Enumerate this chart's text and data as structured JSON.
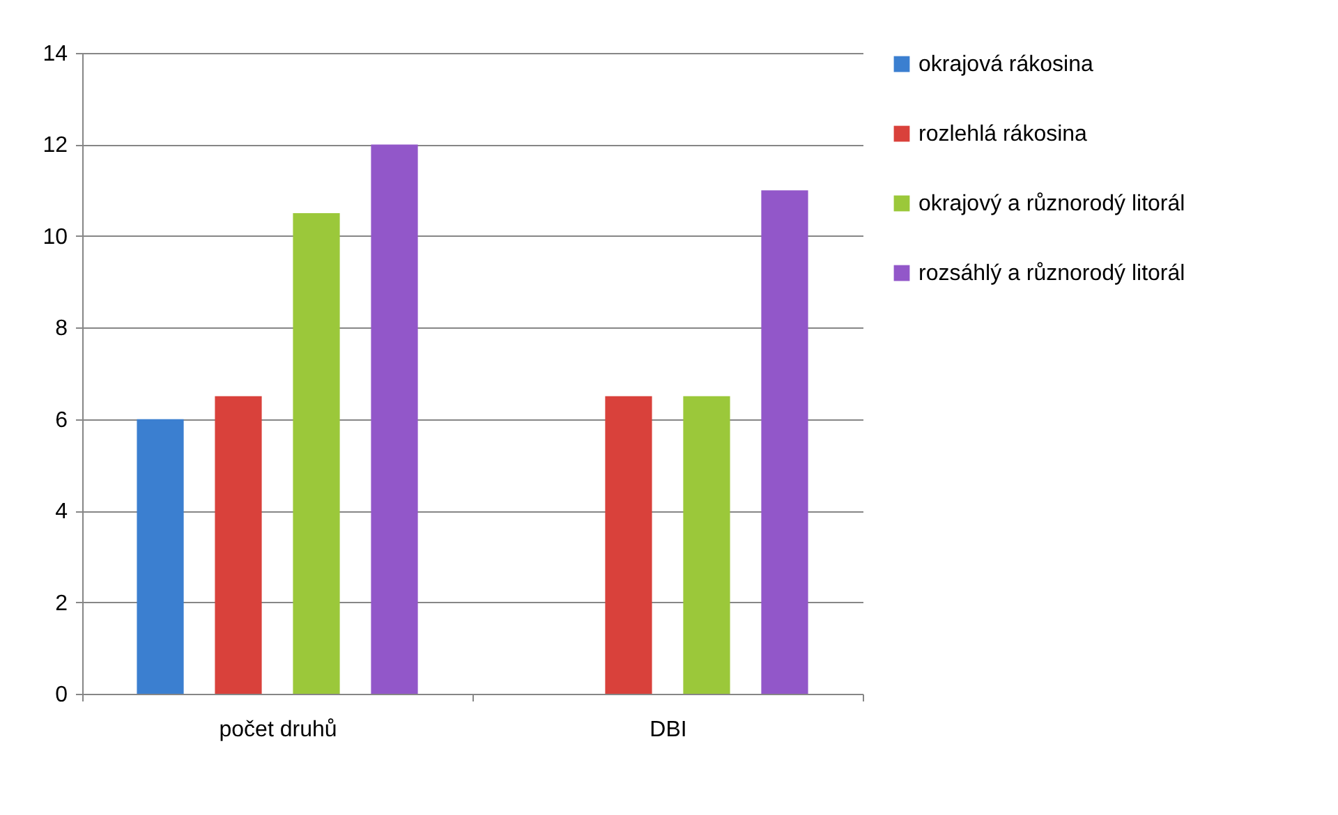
{
  "chart_data": {
    "type": "bar",
    "categories": [
      "počet druhů",
      "DBI"
    ],
    "series": [
      {
        "name": "okrajová rákosina",
        "color": "#3b7fd0",
        "values": [
          6,
          null
        ]
      },
      {
        "name": "rozlehlá rákosina",
        "color": "#d9413b",
        "values": [
          6.5,
          6.5
        ]
      },
      {
        "name": "okrajový a různorodý litorál",
        "color": "#9bc83a",
        "values": [
          10.5,
          6.5
        ]
      },
      {
        "name": "rozsáhlý a různorodý litorál",
        "color": "#9257c9",
        "values": [
          12,
          11
        ]
      }
    ],
    "ylim": [
      0,
      14
    ],
    "yticks": [
      0,
      2,
      4,
      6,
      8,
      10,
      12,
      14
    ],
    "grid": "y",
    "legend": "right"
  }
}
